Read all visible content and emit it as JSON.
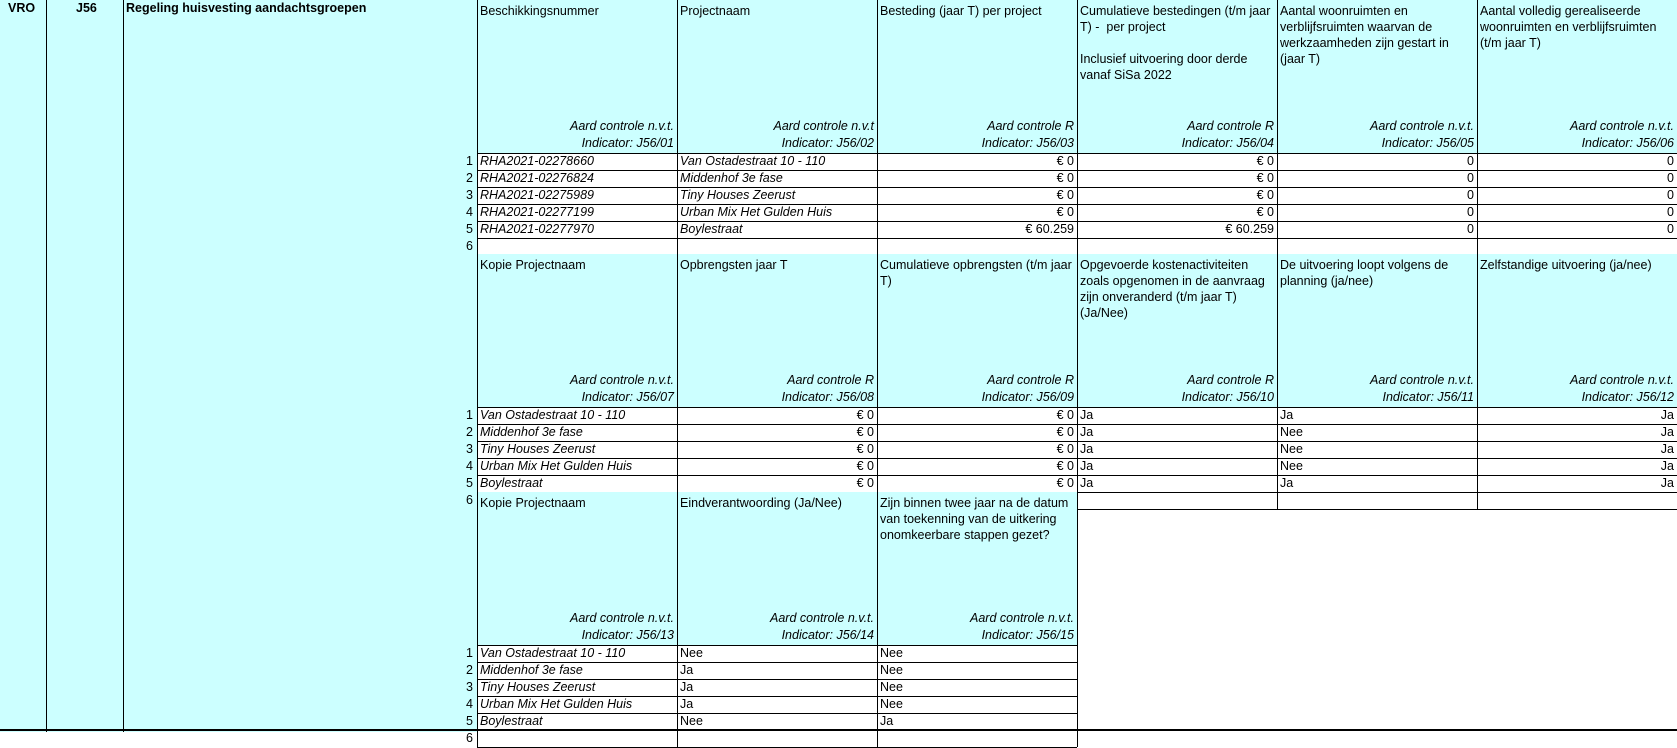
{
  "domain_code": "VRO",
  "code": "J56",
  "regulation_title": "Regeling huisvesting aandachtsgroepen",
  "blocks": [
    {
      "headers": [
        "Beschikkingsnummer",
        "Projectnaam",
        "Besteding (jaar T) per project",
        "Cumulatieve bestedingen (t/m jaar T) -  per project\n\nInclusief uitvoering door derde vanaf SiSa 2022",
        "Aantal woonruimten en verblijfsruimten waarvan de werkzaamheden zijn gestart in (jaar T)",
        "Aantal volledig gerealiseerde woonruimten en verblijfsruimten (t/m jaar T)"
      ],
      "controls": [
        "Aard controle n.v.t.",
        "Aard controle n.v.t",
        "Aard controle R",
        "Aard controle R",
        "Aard controle n.v.t.",
        "Aard controle n.v.t."
      ],
      "indicators": [
        "Indicator: J56/01",
        "Indicator: J56/02",
        "Indicator: J56/03",
        "Indicator: J56/04",
        "Indicator: J56/05",
        "Indicator: J56/06"
      ],
      "italic_cols": [
        true,
        true,
        false,
        false,
        false,
        false
      ],
      "right_cols": [
        false,
        false,
        true,
        true,
        true,
        true
      ],
      "rows": [
        [
          "RHA2021-02278660",
          "Van Ostadestraat 10 - 110",
          "€ 0",
          "€ 0",
          "0",
          "0"
        ],
        [
          "RHA2021-02276824",
          "Middenhof 3e fase",
          "€ 0",
          "€ 0",
          "0",
          "0"
        ],
        [
          "RHA2021-02275989",
          "Tiny Houses Zeerust",
          "€ 0",
          "€ 0",
          "0",
          "0"
        ],
        [
          "RHA2021-02277199",
          "Urban Mix Het Gulden Huis",
          "€ 0",
          "€ 0",
          "0",
          "0"
        ],
        [
          "RHA2021-02277970",
          "Boylestraat",
          "€ 60.259",
          "€ 60.259",
          "0",
          "0"
        ],
        [
          "",
          "",
          "",
          "",
          "",
          ""
        ]
      ]
    },
    {
      "headers": [
        "Kopie Projectnaam",
        "Opbrengsten jaar T",
        "Cumulatieve opbrengsten (t/m jaar T)",
        "Opgevoerde kostenactiviteiten zoals opgenomen in de aanvraag zijn onveranderd (t/m jaar T) (Ja/Nee)",
        "De uitvoering loopt volgens de planning (ja/nee)",
        "Zelfstandige uitvoering (ja/nee)"
      ],
      "controls": [
        "Aard controle n.v.t.",
        "Aard controle R",
        "Aard controle R",
        "Aard controle R",
        "Aard controle n.v.t.",
        "Aard controle n.v.t."
      ],
      "indicators": [
        "Indicator: J56/07",
        "Indicator: J56/08",
        "Indicator: J56/09",
        "Indicator: J56/10",
        "Indicator: J56/11",
        "Indicator: J56/12"
      ],
      "italic_cols": [
        true,
        false,
        false,
        false,
        false,
        false
      ],
      "right_cols": [
        false,
        true,
        true,
        false,
        false,
        true
      ],
      "rows": [
        [
          "Van Ostadestraat 10 - 110",
          "€ 0",
          "€ 0",
          "Ja",
          "Ja",
          "Ja"
        ],
        [
          "Middenhof 3e fase",
          "€ 0",
          "€ 0",
          "Ja",
          "Nee",
          "Ja"
        ],
        [
          "Tiny Houses Zeerust",
          "€ 0",
          "€ 0",
          "Ja",
          "Nee",
          "Ja"
        ],
        [
          "Urban Mix Het Gulden Huis",
          "€ 0",
          "€ 0",
          "Ja",
          "Nee",
          "Ja"
        ],
        [
          "Boylestraat",
          "€ 0",
          "€ 0",
          "Ja",
          "Ja",
          "Ja"
        ],
        [
          "",
          "",
          "",
          "",
          "",
          ""
        ]
      ]
    },
    {
      "headers": [
        "Kopie Projectnaam",
        "Eindverantwoording (Ja/Nee)",
        "Zijn binnen twee jaar na de datum van toekenning van de uitkering onomkeerbare stappen gezet?"
      ],
      "controls": [
        "Aard controle n.v.t.",
        "Aard controle n.v.t.",
        "Aard controle n.v.t."
      ],
      "indicators": [
        "Indicator: J56/13",
        "Indicator: J56/14",
        "Indicator: J56/15"
      ],
      "italic_cols": [
        true,
        false,
        false
      ],
      "right_cols": [
        false,
        false,
        false
      ],
      "rows": [
        [
          "Van Ostadestraat 10 - 110",
          "Nee",
          "Nee"
        ],
        [
          "Middenhof 3e fase",
          "Ja",
          "Nee"
        ],
        [
          "Tiny Houses Zeerust",
          "Ja",
          "Nee"
        ],
        [
          "Urban Mix Het Gulden Huis",
          "Ja",
          "Nee"
        ],
        [
          "Boylestraat",
          "Nee",
          "Ja"
        ],
        [
          "",
          "",
          ""
        ]
      ]
    }
  ],
  "row_numbers": [
    "1",
    "2",
    "3",
    "4",
    "5",
    "6"
  ],
  "colors": {
    "header_bg": "#ccffff",
    "cell_bg": "#ffffff",
    "grid": "#000000"
  }
}
